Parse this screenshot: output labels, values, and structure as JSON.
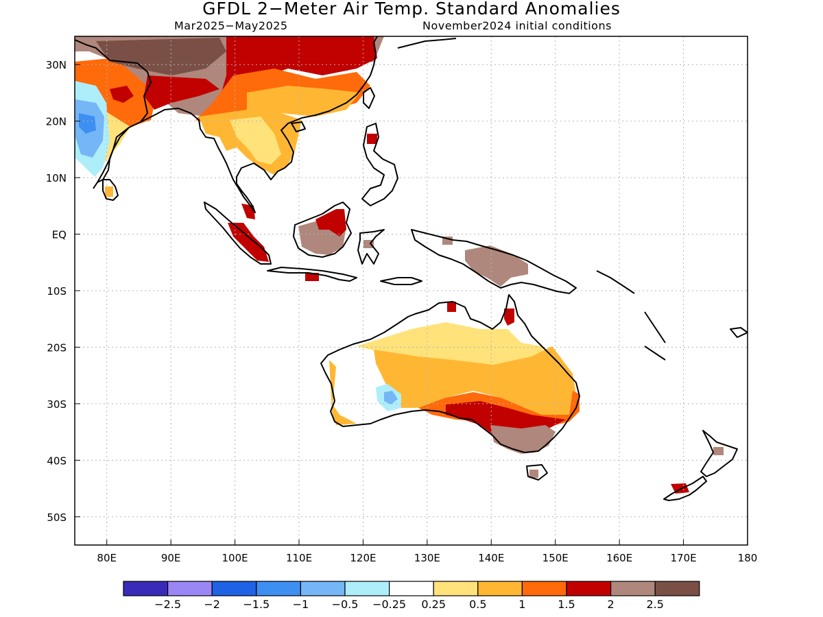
{
  "title": "GFDL 2−Meter Air Temp. Standard Anomalies",
  "period": "Mar2025−May2025",
  "init": "November2024 initial conditions",
  "axes": {
    "lon_range": [
      75,
      180
    ],
    "lat_range": [
      -55,
      35
    ],
    "lon_ticks": [
      {
        "v": 80,
        "label": "80E"
      },
      {
        "v": 90,
        "label": "90E"
      },
      {
        "v": 100,
        "label": "100E"
      },
      {
        "v": 110,
        "label": "110E"
      },
      {
        "v": 120,
        "label": "120E"
      },
      {
        "v": 130,
        "label": "130E"
      },
      {
        "v": 140,
        "label": "140E"
      },
      {
        "v": 150,
        "label": "150E"
      },
      {
        "v": 160,
        "label": "160E"
      },
      {
        "v": 170,
        "label": "170E"
      },
      {
        "v": 180,
        "label": "180"
      }
    ],
    "lat_ticks": [
      {
        "v": 30,
        "label": "30N"
      },
      {
        "v": 20,
        "label": "20N"
      },
      {
        "v": 10,
        "label": "10N"
      },
      {
        "v": 0,
        "label": "EQ"
      },
      {
        "v": -10,
        "label": "10S"
      },
      {
        "v": -20,
        "label": "20S"
      },
      {
        "v": -30,
        "label": "30S"
      },
      {
        "v": -40,
        "label": "40S"
      },
      {
        "v": -50,
        "label": "50S"
      }
    ]
  },
  "colorbar": {
    "colors": [
      "#3a2ab8",
      "#9b86f5",
      "#1f62e6",
      "#3d8ff2",
      "#75b6f7",
      "#aeeefa",
      "#ffffff",
      "#ffe27a",
      "#ffb733",
      "#ff6a0a",
      "#c10000",
      "#b0877c",
      "#7a5046"
    ],
    "labels": [
      "−2.5",
      "−2",
      "−1.5",
      "−1",
      "−0.5",
      "−0.25",
      "0.25",
      "0.5",
      "1",
      "1.5",
      "2",
      "2.5"
    ]
  }
}
